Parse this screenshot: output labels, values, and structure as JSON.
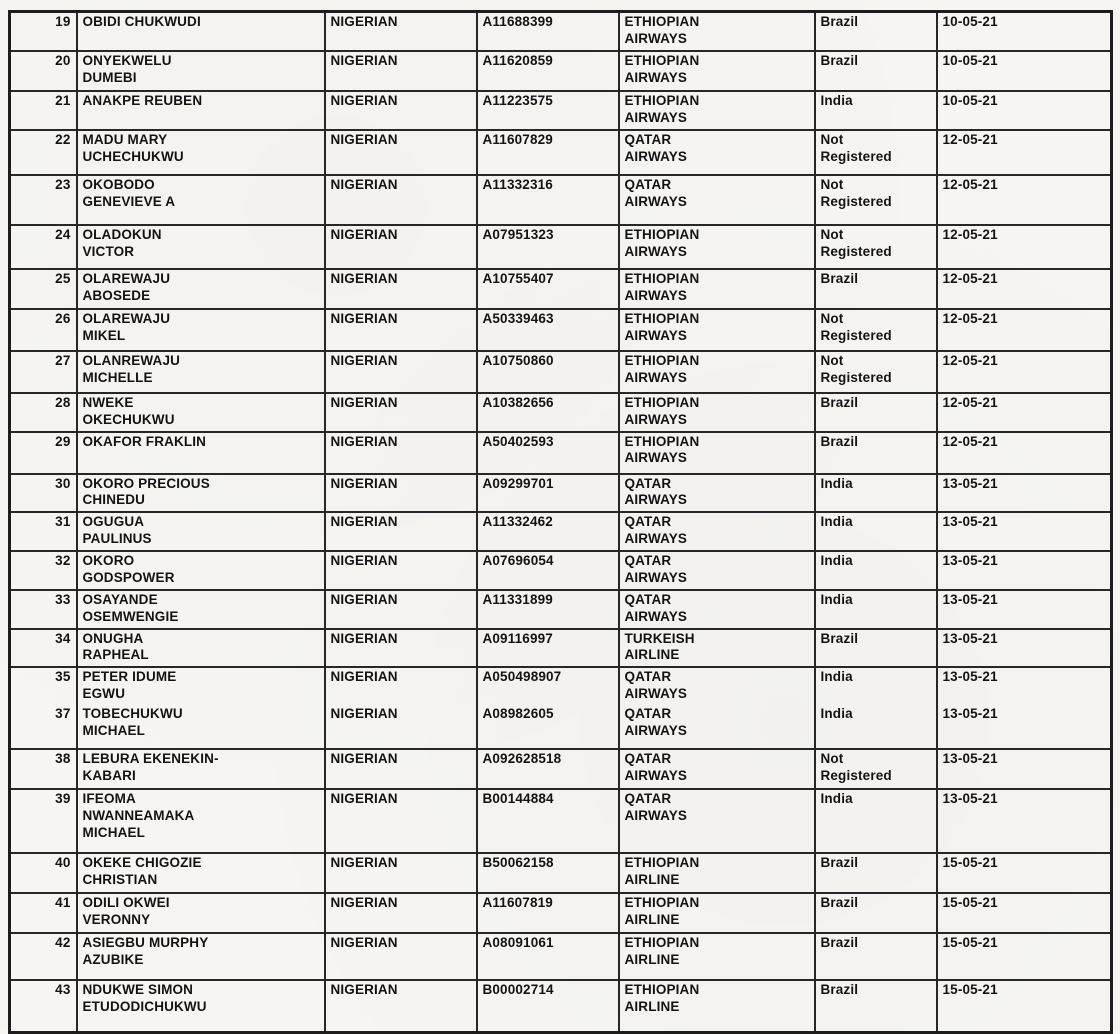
{
  "document": {
    "description": "scanned passenger list table fragment",
    "rows": [
      {
        "number": "19",
        "name": "OBIDI CHUKWUDI",
        "nationality": "NIGERIAN",
        "passport": "A11688399",
        "airline": "ETHIOPIAN\nAIRWAYS",
        "destination": "Brazil",
        "date": "10-05-21"
      },
      {
        "number": "20",
        "name": "ONYEKWELU\nDUMEBI",
        "nationality": "NIGERIAN",
        "passport": "A11620859",
        "airline": "ETHIOPIAN\nAIRWAYS",
        "destination": "Brazil",
        "date": "10-05-21"
      },
      {
        "number": "21",
        "name": "ANAKPE REUBEN",
        "nationality": "NIGERIAN",
        "passport": "A11223575",
        "airline": "ETHIOPIAN\nAIRWAYS",
        "destination": "India",
        "date": "10-05-21"
      },
      {
        "number": "22",
        "name": "MADU MARY\nUCHECHUKWU",
        "nationality": "NIGERIAN",
        "passport": "A11607829",
        "airline": "QATAR\nAIRWAYS",
        "destination": "Not\nRegistered",
        "date": "12-05-21"
      },
      {
        "number": "23",
        "name": "OKOBODO\nGENEVIEVE A",
        "nationality": "NIGERIAN",
        "passport": "A11332316",
        "airline": "QATAR\nAIRWAYS",
        "destination": "Not\nRegistered",
        "date": "12-05-21"
      },
      {
        "number": "24",
        "name": "OLADOKUN\nVICTOR",
        "nationality": "NIGERIAN",
        "passport": "A07951323",
        "airline": "ETHIOPIAN\nAIRWAYS",
        "destination": "Not\nRegistered",
        "date": "12-05-21"
      },
      {
        "number": "25",
        "name": "OLAREWAJU\nABOSEDE",
        "nationality": "NIGERIAN",
        "passport": "A10755407",
        "airline": "ETHIOPIAN\nAIRWAYS",
        "destination": "Brazil",
        "date": "12-05-21"
      },
      {
        "number": "26",
        "name": "OLAREWAJU\nMIKEL",
        "nationality": "NIGERIAN",
        "passport": "A50339463",
        "airline": "ETHIOPIAN\nAIRWAYS",
        "destination": "Not\nRegistered",
        "date": "12-05-21"
      },
      {
        "number": "27",
        "name": "OLANREWAJU\nMICHELLE",
        "nationality": "NIGERIAN",
        "passport": "A10750860",
        "airline": "ETHIOPIAN\nAIRWAYS",
        "destination": "Not\nRegistered",
        "date": "12-05-21"
      },
      {
        "number": "28",
        "name": "NWEKE\nOKECHUKWU",
        "nationality": "NIGERIAN",
        "passport": "A10382656",
        "airline": "ETHIOPIAN\nAIRWAYS",
        "destination": "Brazil",
        "date": "12-05-21"
      },
      {
        "number": "29",
        "name": "OKAFOR FRAKLIN",
        "nationality": "NIGERIAN",
        "passport": "A50402593",
        "airline": "ETHIOPIAN\nAIRWAYS",
        "destination": "Brazil",
        "date": "12-05-21"
      },
      {
        "number": "30",
        "name": "OKORO PRECIOUS\nCHINEDU",
        "nationality": "NIGERIAN",
        "passport": "A09299701",
        "airline": "QATAR\nAIRWAYS",
        "destination": "India",
        "date": "13-05-21"
      },
      {
        "number": "31",
        "name": "OGUGUA\nPAULINUS",
        "nationality": "NIGERIAN",
        "passport": "A11332462",
        "airline": "QATAR\nAIRWAYS",
        "destination": "India",
        "date": "13-05-21"
      },
      {
        "number": "32",
        "name": "OKORO\nGODSPOWER",
        "nationality": "NIGERIAN",
        "passport": "A07696054",
        "airline": "QATAR\nAIRWAYS",
        "destination": "India",
        "date": "13-05-21"
      },
      {
        "number": "33",
        "name": "OSAYANDE\nOSEMWENGIE",
        "nationality": "NIGERIAN",
        "passport": "A11331899",
        "airline": "QATAR\nAIRWAYS",
        "destination": "India",
        "date": "13-05-21"
      },
      {
        "number": "34",
        "name": "ONUGHA\nRAPHEAL",
        "nationality": "NIGERIAN",
        "passport": "A09116997",
        "airline": "TURKEISH\nAIRLINE",
        "destination": "Brazil",
        "date": "13-05-21"
      },
      {
        "number": "35",
        "name": "PETER IDUME\nEGWU",
        "nationality": "NIGERIAN",
        "passport": "A050498907",
        "airline": "QATAR\nAIRWAYS",
        "destination": "India",
        "date": "13-05-21"
      },
      {
        "number": "37",
        "name": "TOBECHUKWU\nMICHAEL",
        "nationality": "NIGERIAN",
        "passport": "A08982605",
        "airline": "QATAR\nAIRWAYS",
        "destination": "India",
        "date": "13-05-21"
      },
      {
        "number": "38",
        "name": "LEBURA EKENEKIN-\nKABARI",
        "nationality": "NIGERIAN",
        "passport": "A092628518",
        "airline": "QATAR\nAIRWAYS",
        "destination": "Not\nRegistered",
        "date": "13-05-21"
      },
      {
        "number": "39",
        "name": "IFEOMA\nNWANNEAMAKA\nMICHAEL",
        "nationality": "NIGERIAN",
        "passport": "B00144884",
        "airline": "QATAR\nAIRWAYS",
        "destination": "India",
        "date": "13-05-21"
      },
      {
        "number": "40",
        "name": "OKEKE CHIGOZIE\nCHRISTIAN",
        "nationality": "NIGERIAN",
        "passport": "B50062158",
        "airline": "ETHIOPIAN\nAIRLINE",
        "destination": "Brazil",
        "date": "15-05-21"
      },
      {
        "number": "41",
        "name": "ODILI OKWEI\nVERONNY",
        "nationality": "NIGERIAN",
        "passport": "A11607819",
        "airline": "ETHIOPIAN\nAIRLINE",
        "destination": "Brazil",
        "date": "15-05-21"
      },
      {
        "number": "42",
        "name": "ASIEGBU MURPHY\nAZUBIKE",
        "nationality": "NIGERIAN",
        "passport": "A08091061",
        "airline": "ETHIOPIAN\nAIRLINE",
        "destination": "Brazil",
        "date": "15-05-21"
      },
      {
        "number": "43",
        "name": "NDUKWE SIMON\nETUDODICHUKWU",
        "nationality": "NIGERIAN",
        "passport": "B00002714",
        "airline": "ETHIOPIAN\nAIRLINE",
        "destination": "Brazil",
        "date": "15-05-21"
      }
    ]
  }
}
